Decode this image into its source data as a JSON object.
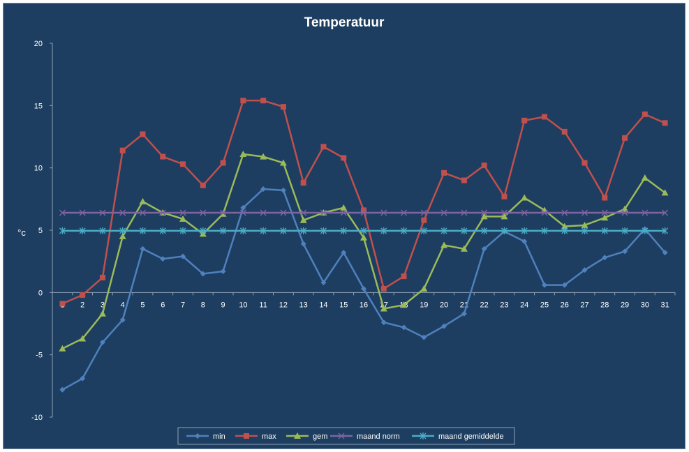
{
  "chart_data": {
    "type": "line",
    "title": "Temperatuur",
    "xlabel": "",
    "ylabel": "°c",
    "ylim": [
      -10,
      20
    ],
    "yticks": [
      -10,
      -5,
      0,
      5,
      10,
      15,
      20
    ],
    "grid": false,
    "legend_position": "bottom",
    "background": "#1d3e60",
    "categories": [
      "1",
      "2",
      "3",
      "4",
      "5",
      "6",
      "7",
      "8",
      "9",
      "10",
      "11",
      "12",
      "13",
      "14",
      "15",
      "16",
      "17",
      "18",
      "19",
      "20",
      "21",
      "22",
      "23",
      "24",
      "25",
      "26",
      "27",
      "28",
      "29",
      "30",
      "31"
    ],
    "series": [
      {
        "name": "min",
        "color": "#4f81bd",
        "marker": "diamond",
        "values": [
          -7.8,
          -6.9,
          -4.0,
          -2.2,
          3.5,
          2.7,
          2.9,
          1.5,
          1.7,
          6.8,
          8.3,
          8.2,
          3.9,
          0.8,
          3.2,
          0.3,
          -2.4,
          -2.8,
          -3.6,
          -2.7,
          -1.7,
          3.5,
          4.9,
          4.1,
          0.6,
          0.6,
          1.8,
          2.8,
          3.3,
          5.1,
          3.2
        ]
      },
      {
        "name": "max",
        "color": "#c0504d",
        "marker": "square",
        "values": [
          -0.9,
          -0.2,
          1.2,
          11.4,
          12.7,
          10.9,
          10.3,
          8.6,
          10.4,
          15.4,
          15.4,
          14.9,
          8.8,
          11.7,
          10.8,
          6.6,
          0.3,
          1.3,
          5.8,
          9.6,
          9.0,
          10.2,
          7.7,
          13.8,
          14.1,
          12.9,
          10.4,
          7.6,
          12.4,
          14.3,
          13.6
        ]
      },
      {
        "name": "gem",
        "color": "#9bbb59",
        "marker": "triangle",
        "values": [
          -4.5,
          -3.7,
          -1.7,
          4.5,
          7.3,
          6.4,
          5.9,
          4.7,
          6.3,
          11.1,
          10.9,
          10.4,
          5.8,
          6.4,
          6.8,
          4.4,
          -1.3,
          -1.0,
          0.3,
          3.8,
          3.5,
          6.1,
          6.1,
          7.6,
          6.6,
          5.3,
          5.4,
          6.0,
          6.7,
          9.2,
          8.0
        ]
      },
      {
        "name": "maand norm",
        "color": "#8064a2",
        "marker": "x",
        "values": [
          6.4,
          6.4,
          6.4,
          6.4,
          6.4,
          6.4,
          6.4,
          6.4,
          6.4,
          6.4,
          6.4,
          6.4,
          6.4,
          6.4,
          6.4,
          6.4,
          6.4,
          6.4,
          6.4,
          6.4,
          6.4,
          6.4,
          6.4,
          6.4,
          6.4,
          6.4,
          6.4,
          6.4,
          6.4,
          6.4,
          6.4
        ]
      },
      {
        "name": "maand gemiddelde",
        "color": "#4bacc6",
        "marker": "star",
        "values": [
          4.95,
          4.95,
          4.95,
          4.95,
          4.95,
          4.95,
          4.95,
          4.95,
          4.95,
          4.95,
          4.95,
          4.95,
          4.95,
          4.95,
          4.95,
          4.95,
          4.95,
          4.95,
          4.95,
          4.95,
          4.95,
          4.95,
          4.95,
          4.95,
          4.95,
          4.95,
          4.95,
          4.95,
          4.95,
          4.95,
          4.95
        ]
      }
    ]
  }
}
